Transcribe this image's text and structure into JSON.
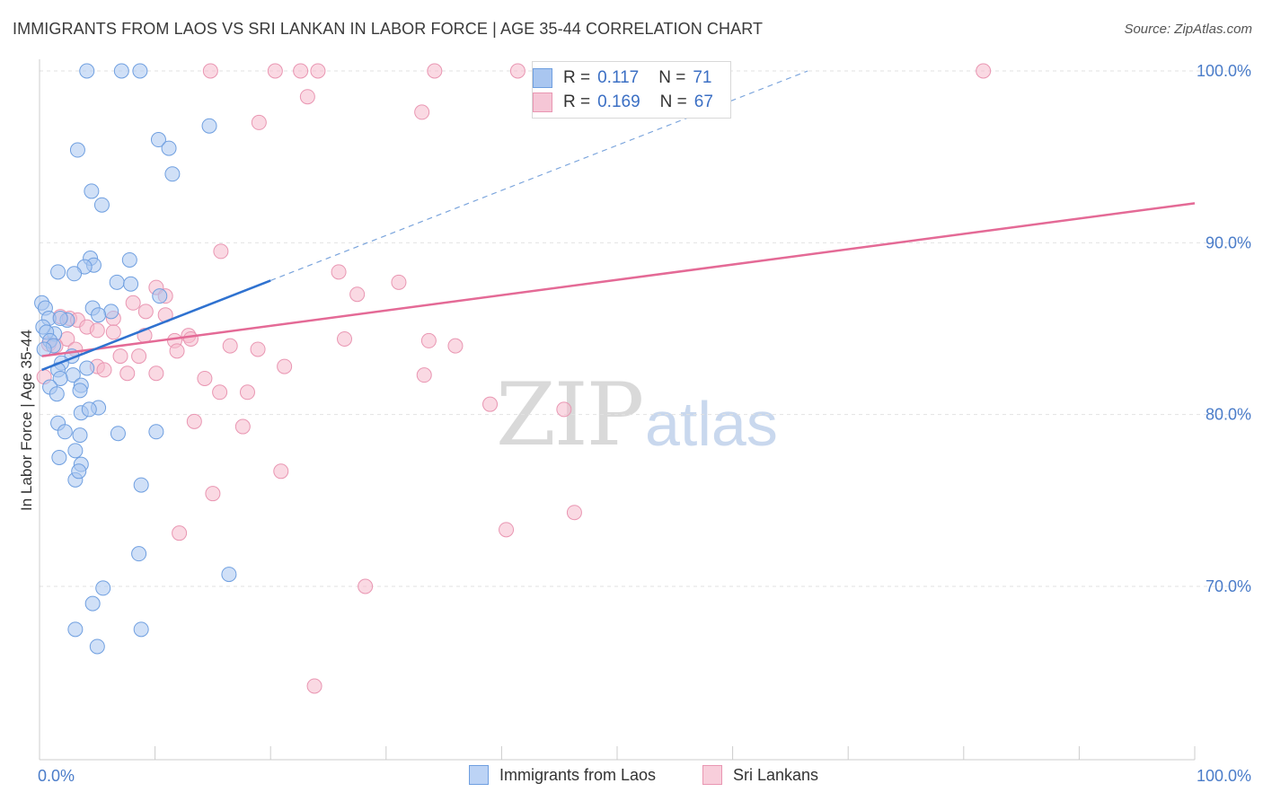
{
  "title": "IMMIGRANTS FROM LAOS VS SRI LANKAN IN LABOR FORCE | AGE 35-44 CORRELATION CHART",
  "source": "Source: ZipAtlas.com",
  "watermark": {
    "zip": "ZIP",
    "atlas": "atlas"
  },
  "legend": {
    "rows": [
      {
        "r_label": "R =",
        "r_value": "0.117",
        "n_label": "N =",
        "n_value": "71"
      },
      {
        "r_label": "R =",
        "r_value": "0.169",
        "n_label": "N =",
        "n_value": "67"
      }
    ]
  },
  "bottom_legend": {
    "series1": "Immigrants from Laos",
    "series2": "Sri Lankans"
  },
  "colors": {
    "blue_fill": "#a9c6f0",
    "blue_stroke": "#6f9fe0",
    "blue_line": "#2f72d0",
    "pink_fill": "#f5b9cc",
    "pink_stroke": "#e996b2",
    "pink_line": "#e46a96",
    "tick_label": "#4a7cc9",
    "grid": "#e2e2e2"
  },
  "chart_data": {
    "type": "scatter",
    "title": "IMMIGRANTS FROM LAOS VS SRI LANKAN IN LABOR FORCE | AGE 35-44 CORRELATION CHART",
    "xlabel": "",
    "ylabel": "In Labor Force | Age 35-44",
    "x_tick_labels": [
      "0.0%",
      "100.0%"
    ],
    "y_tick_labels": [
      "70.0%",
      "80.0%",
      "90.0%",
      "100.0%"
    ],
    "y_ticks": [
      70,
      80,
      90,
      100
    ],
    "xlim": [
      0,
      100
    ],
    "ylim": [
      60,
      101
    ],
    "series": [
      {
        "name": "Immigrants from Laos",
        "r": 0.117,
        "n": 71,
        "trend": {
          "x": [
            0.2,
            20
          ],
          "y": [
            82.6,
            87.8
          ]
        },
        "trend_extension": {
          "x": [
            20,
            66.5
          ],
          "y": [
            87.8,
            100
          ]
        },
        "points": [
          [
            4.1,
            100
          ],
          [
            7.1,
            100
          ],
          [
            8.7,
            100
          ],
          [
            14.7,
            96.8
          ],
          [
            10.3,
            96.0
          ],
          [
            11.2,
            95.5
          ],
          [
            3.3,
            95.4
          ],
          [
            11.5,
            94.0
          ],
          [
            4.5,
            93.0
          ],
          [
            5.4,
            92.2
          ],
          [
            4.4,
            89.1
          ],
          [
            7.8,
            89.0
          ],
          [
            4.7,
            88.7
          ],
          [
            3.9,
            88.6
          ],
          [
            1.6,
            88.3
          ],
          [
            3.0,
            88.2
          ],
          [
            6.7,
            87.7
          ],
          [
            7.9,
            87.6
          ],
          [
            10.4,
            86.9
          ],
          [
            0.2,
            86.5
          ],
          [
            0.5,
            86.2
          ],
          [
            4.6,
            86.2
          ],
          [
            6.2,
            86.0
          ],
          [
            5.1,
            85.8
          ],
          [
            2.4,
            85.5
          ],
          [
            1.3,
            84.7
          ],
          [
            0.8,
            85.6
          ],
          [
            1.8,
            85.6
          ],
          [
            0.3,
            85.1
          ],
          [
            0.6,
            84.8
          ],
          [
            0.9,
            84.3
          ],
          [
            1.2,
            84.0
          ],
          [
            0.4,
            83.8
          ],
          [
            2.8,
            83.4
          ],
          [
            1.9,
            83.0
          ],
          [
            1.6,
            82.6
          ],
          [
            2.9,
            82.3
          ],
          [
            4.1,
            82.7
          ],
          [
            1.8,
            82.1
          ],
          [
            0.9,
            81.6
          ],
          [
            3.6,
            81.7
          ],
          [
            1.5,
            81.2
          ],
          [
            3.5,
            81.4
          ],
          [
            5.1,
            80.4
          ],
          [
            3.6,
            80.1
          ],
          [
            4.3,
            80.3
          ],
          [
            1.6,
            79.5
          ],
          [
            2.2,
            79.0
          ],
          [
            3.5,
            78.8
          ],
          [
            6.8,
            78.9
          ],
          [
            10.1,
            79.0
          ],
          [
            3.1,
            77.9
          ],
          [
            1.7,
            77.5
          ],
          [
            3.6,
            77.1
          ],
          [
            3.1,
            76.2
          ],
          [
            3.4,
            76.7
          ],
          [
            8.8,
            75.9
          ],
          [
            8.6,
            71.9
          ],
          [
            16.4,
            70.7
          ],
          [
            5.5,
            69.9
          ],
          [
            4.6,
            69.0
          ],
          [
            3.1,
            67.5
          ],
          [
            8.8,
            67.5
          ],
          [
            5.0,
            66.5
          ]
        ]
      },
      {
        "name": "Sri Lankans",
        "r": 0.169,
        "n": 67,
        "trend": {
          "x": [
            0.2,
            100
          ],
          "y": [
            83.4,
            92.3
          ]
        },
        "points": [
          [
            14.8,
            100
          ],
          [
            20.4,
            100
          ],
          [
            22.6,
            100
          ],
          [
            24.1,
            100
          ],
          [
            34.2,
            100
          ],
          [
            41.4,
            100
          ],
          [
            81.7,
            100
          ],
          [
            23.2,
            98.5
          ],
          [
            33.1,
            97.6
          ],
          [
            19.0,
            97.0
          ],
          [
            15.7,
            89.5
          ],
          [
            25.9,
            88.3
          ],
          [
            31.1,
            87.7
          ],
          [
            27.5,
            87.0
          ],
          [
            10.1,
            87.4
          ],
          [
            10.9,
            86.9
          ],
          [
            8.1,
            86.5
          ],
          [
            9.2,
            86.0
          ],
          [
            10.9,
            85.8
          ],
          [
            6.4,
            85.6
          ],
          [
            1.8,
            85.7
          ],
          [
            2.6,
            85.6
          ],
          [
            3.3,
            85.5
          ],
          [
            4.1,
            85.1
          ],
          [
            5.0,
            84.9
          ],
          [
            2.4,
            84.4
          ],
          [
            0.8,
            84.1
          ],
          [
            1.4,
            84.0
          ],
          [
            3.1,
            83.8
          ],
          [
            6.4,
            84.8
          ],
          [
            9.1,
            84.6
          ],
          [
            11.7,
            84.3
          ],
          [
            12.9,
            84.6
          ],
          [
            13.1,
            84.4
          ],
          [
            16.5,
            84.0
          ],
          [
            26.4,
            84.4
          ],
          [
            33.7,
            84.3
          ],
          [
            36.0,
            84.0
          ],
          [
            18.9,
            83.8
          ],
          [
            11.9,
            83.7
          ],
          [
            7.0,
            83.4
          ],
          [
            8.6,
            83.4
          ],
          [
            5.0,
            82.8
          ],
          [
            5.6,
            82.6
          ],
          [
            7.6,
            82.4
          ],
          [
            10.1,
            82.4
          ],
          [
            14.3,
            82.1
          ],
          [
            21.2,
            82.8
          ],
          [
            33.3,
            82.3
          ],
          [
            0.4,
            82.2
          ],
          [
            15.6,
            81.3
          ],
          [
            18.0,
            81.3
          ],
          [
            39.0,
            80.6
          ],
          [
            45.4,
            80.3
          ],
          [
            13.4,
            79.6
          ],
          [
            17.6,
            79.3
          ],
          [
            20.9,
            76.7
          ],
          [
            15.0,
            75.4
          ],
          [
            46.3,
            74.3
          ],
          [
            40.4,
            73.3
          ],
          [
            12.1,
            73.1
          ],
          [
            28.2,
            70.0
          ],
          [
            23.8,
            64.2
          ]
        ]
      }
    ]
  }
}
